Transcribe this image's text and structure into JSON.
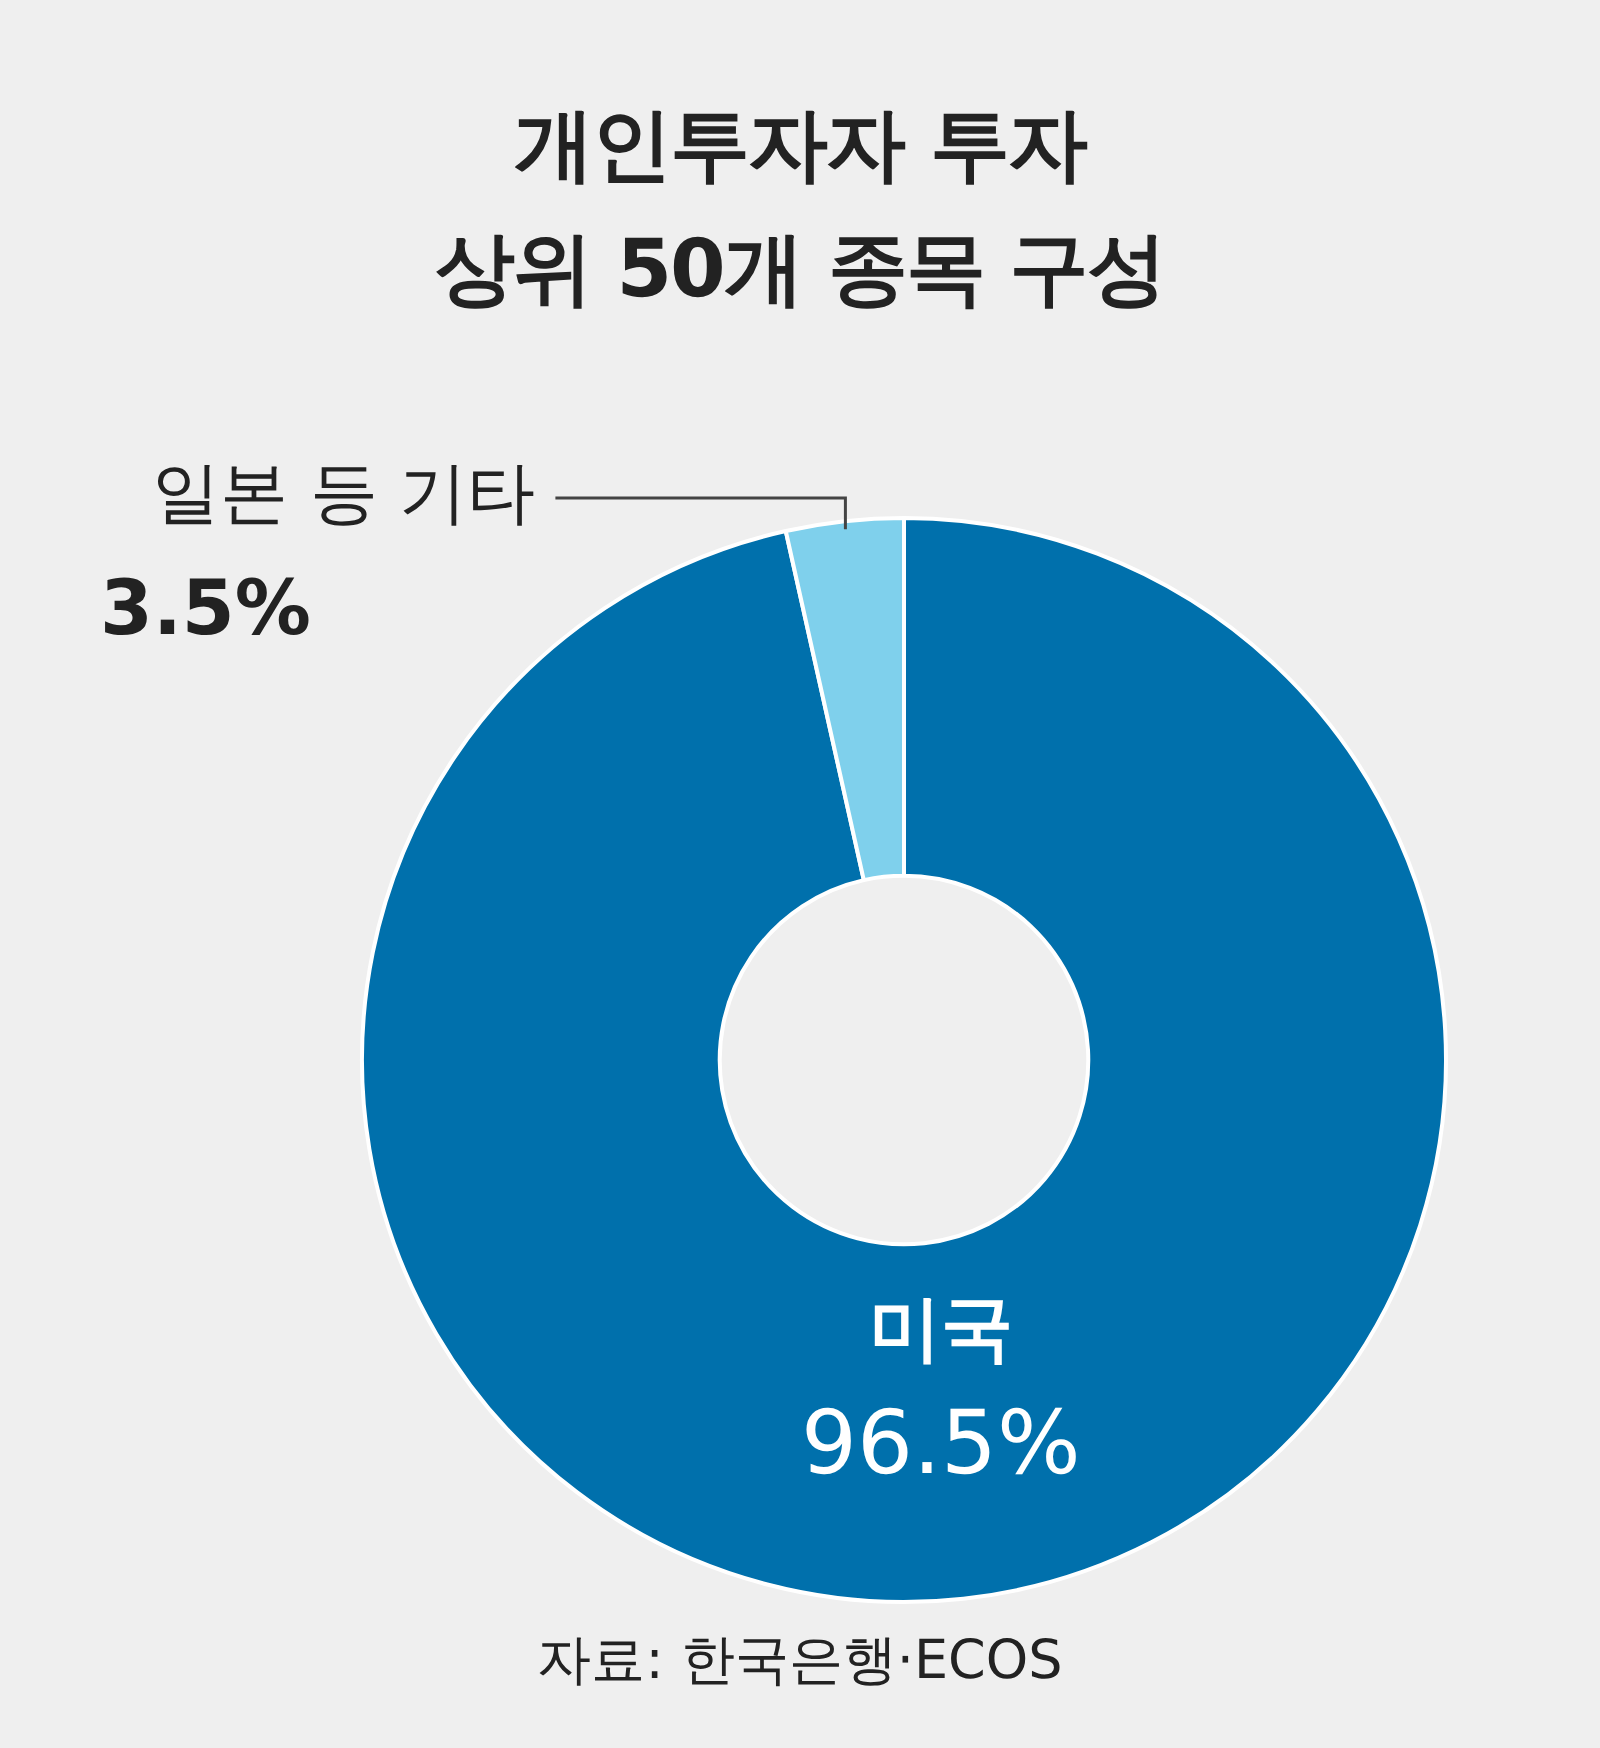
{
  "chart_data": {
    "type": "donut",
    "title": "개인투자자 투자\n상위 50개 종목 구성",
    "categories": [
      "미국",
      "일본 등 기타"
    ],
    "values": [
      96.5,
      3.5
    ],
    "colors": [
      "#0070ac",
      "#7fd0ec"
    ],
    "value_labels": [
      "96.5%",
      "3.5%"
    ],
    "legend": false,
    "annotations": [
      "자료: 한국은행·ECOS"
    ]
  }
}
